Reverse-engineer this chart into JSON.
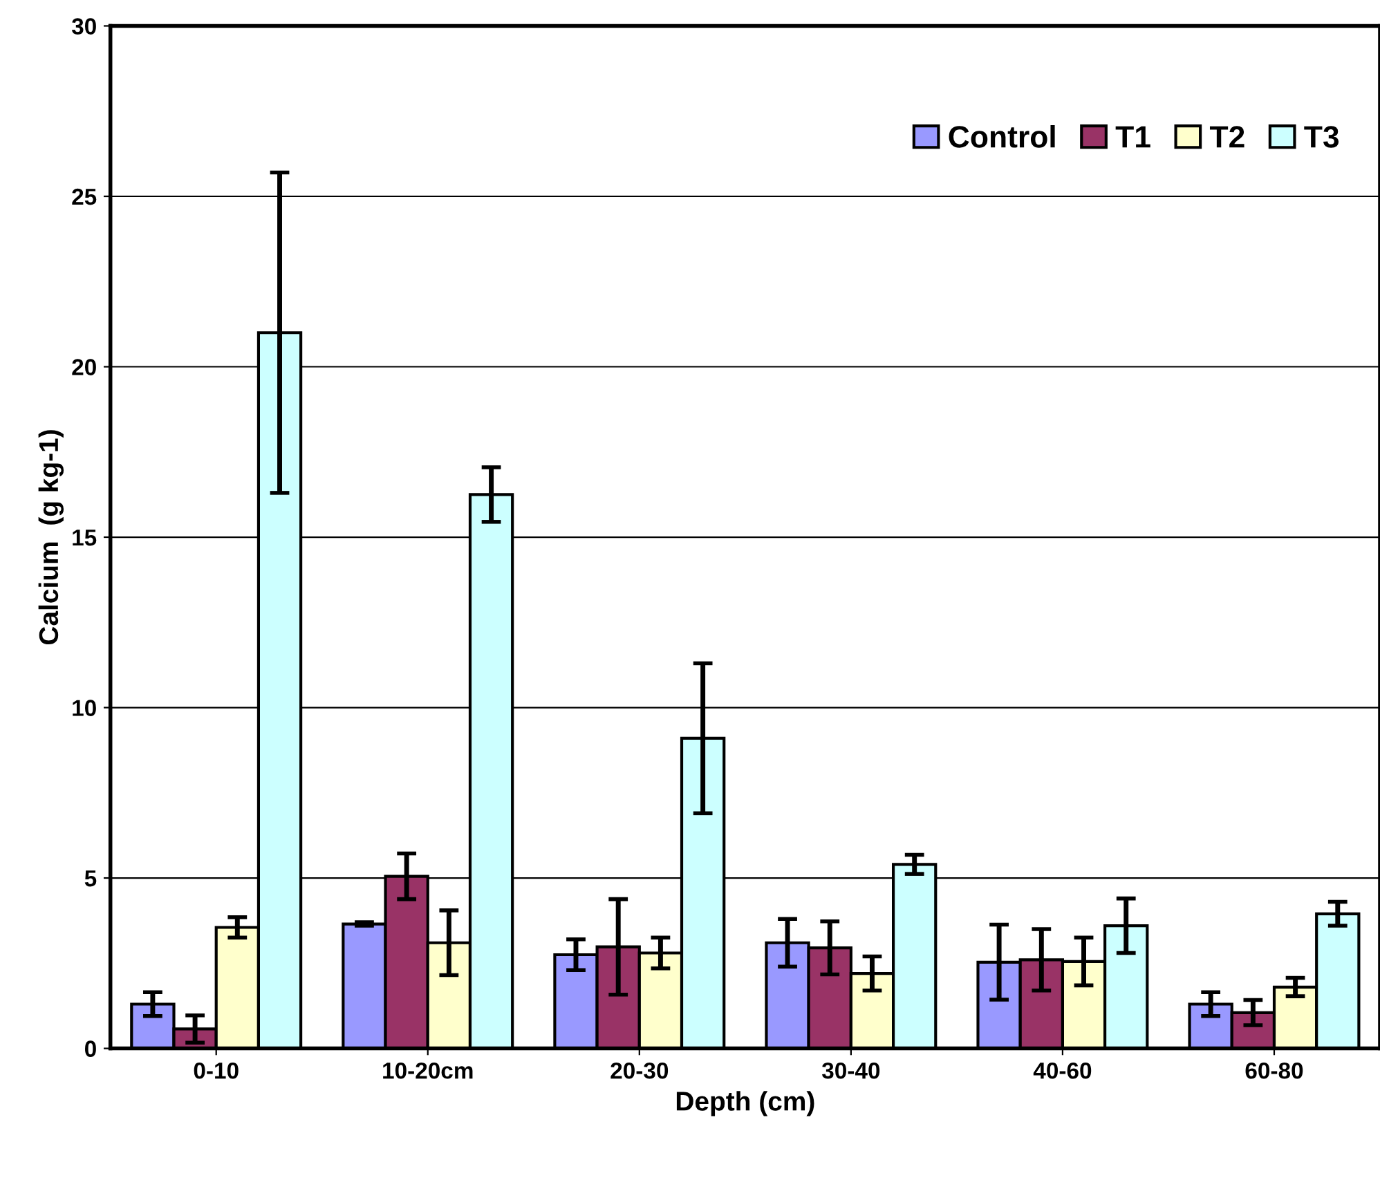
{
  "chart_data": {
    "type": "bar",
    "xlabel": "Depth (cm)",
    "ylabel": "Calcium  (g kg-1)",
    "categories": [
      "0-10",
      "10-20cm",
      "20-30",
      "30-40",
      "40-60",
      "60-80"
    ],
    "series": [
      {
        "name": "Control",
        "color": "#9999ff",
        "values": [
          1.3,
          3.65,
          2.75,
          3.1,
          2.53,
          1.3
        ],
        "errors": [
          0.35,
          0.05,
          0.45,
          0.7,
          1.1,
          0.35
        ]
      },
      {
        "name": "T1",
        "color": "#993366",
        "values": [
          0.57,
          5.05,
          2.98,
          2.95,
          2.6,
          1.05
        ],
        "errors": [
          0.4,
          0.67,
          1.4,
          0.78,
          0.9,
          0.37
        ]
      },
      {
        "name": "T2",
        "color": "#ffffcc",
        "values": [
          3.55,
          3.1,
          2.8,
          2.2,
          2.55,
          1.8
        ],
        "errors": [
          0.3,
          0.95,
          0.45,
          0.5,
          0.7,
          0.27
        ]
      },
      {
        "name": "T3",
        "color": "#ccffff",
        "values": [
          21.0,
          16.25,
          9.1,
          5.4,
          3.6,
          3.95
        ],
        "errors": [
          4.7,
          0.8,
          2.2,
          0.28,
          0.8,
          0.35
        ]
      }
    ],
    "ylim": [
      0,
      30
    ],
    "yticks": [
      0,
      5,
      10,
      15,
      20,
      25,
      30
    ],
    "grid": "y",
    "legend": "top right"
  }
}
